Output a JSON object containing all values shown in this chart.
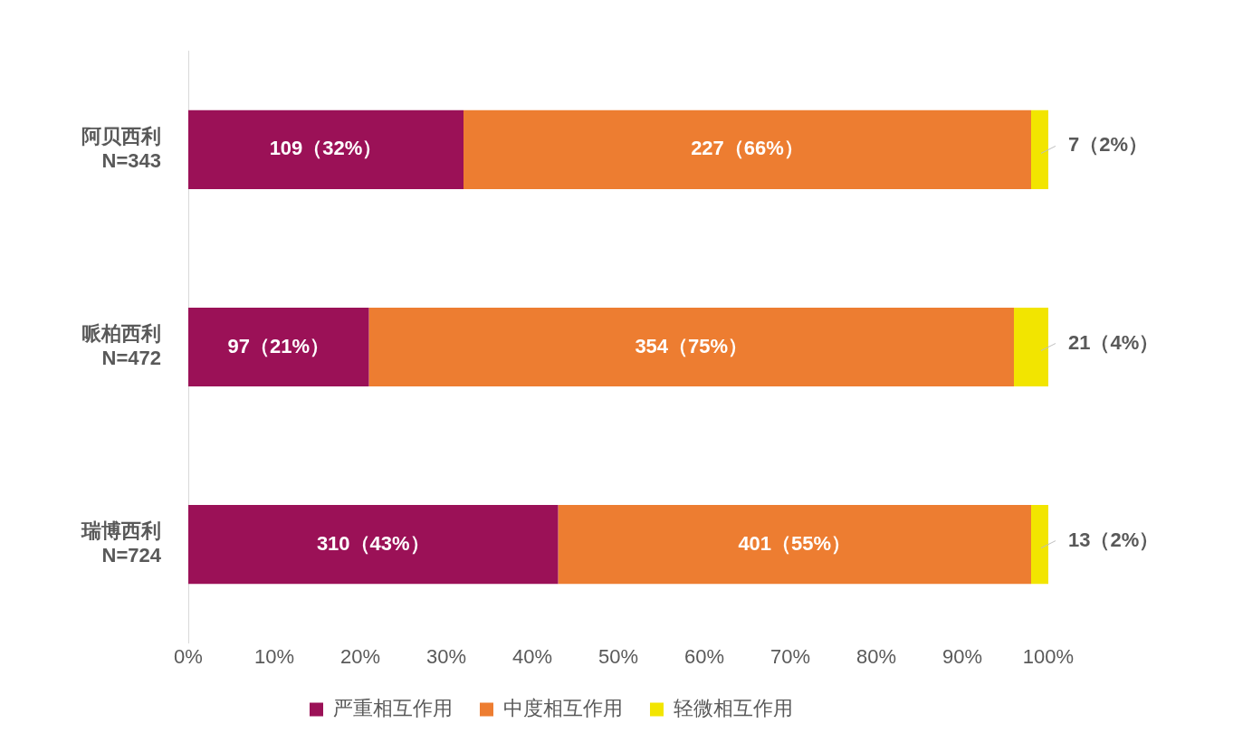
{
  "chart_data": {
    "type": "bar",
    "orientation": "horizontal",
    "stacked": true,
    "categories": [
      "阿贝西利\nN=343",
      "哌柏西利\nN=472",
      "瑞博西利\nN=724"
    ],
    "series": [
      {
        "name": "严重相互作用",
        "color": "#9b1157",
        "values": [
          32,
          21,
          43
        ],
        "value_labels": [
          "109（32%）",
          "97（21%）",
          "310（43%）"
        ]
      },
      {
        "name": "中度相互作用",
        "color": "#ed7d31",
        "values": [
          66,
          75,
          55
        ],
        "value_labels": [
          "227（66%）",
          "354（75%）",
          "401（55%）"
        ]
      },
      {
        "name": "轻微相互作用",
        "color": "#f2e500",
        "values": [
          2,
          4,
          2
        ],
        "value_labels": [
          "7（2%）",
          "21（4%）",
          "13（2%）"
        ]
      }
    ],
    "xlim": [
      0,
      100
    ],
    "xticks": [
      {
        "value": 0,
        "label": "0%"
      },
      {
        "value": 10,
        "label": "10%"
      },
      {
        "value": 20,
        "label": "20%"
      },
      {
        "value": 30,
        "label": "30%"
      },
      {
        "value": 40,
        "label": "40%"
      },
      {
        "value": 50,
        "label": "50%"
      },
      {
        "value": 60,
        "label": "60%"
      },
      {
        "value": 70,
        "label": "70%"
      },
      {
        "value": 80,
        "label": "80%"
      },
      {
        "value": 90,
        "label": "90%"
      },
      {
        "value": 100,
        "label": "100%"
      }
    ],
    "grid": false,
    "legend": "bottom"
  }
}
